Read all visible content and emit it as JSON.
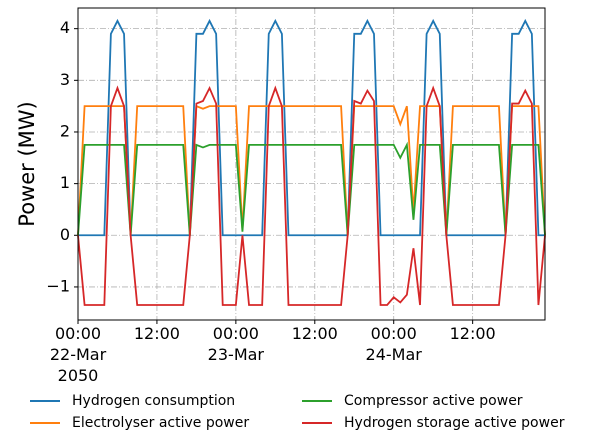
{
  "chart_data": {
    "type": "line",
    "ylabel": "Power (MW)",
    "x": [
      0,
      1,
      2,
      3,
      4,
      5,
      6,
      7,
      8,
      9,
      10,
      11,
      12,
      13,
      14,
      15,
      16,
      17,
      18,
      19,
      20,
      21,
      22,
      23,
      24,
      25,
      26,
      27,
      28,
      29,
      30,
      31,
      32,
      33,
      34,
      35,
      36,
      37,
      38,
      39,
      40,
      41,
      42,
      43,
      44,
      45,
      46,
      47,
      48,
      49,
      50,
      51,
      52,
      53,
      54,
      55,
      56,
      57,
      58,
      59,
      60,
      61,
      62,
      63,
      64,
      65,
      66,
      67,
      68,
      69,
      70,
      71
    ],
    "xlim": [
      0,
      71
    ],
    "xticks": [
      {
        "value": 0,
        "label": "00:00\n22-Mar\n2050"
      },
      {
        "value": 12,
        "label": "12:00"
      },
      {
        "value": 24,
        "label": "00:00\n23-Mar"
      },
      {
        "value": 36,
        "label": "12:00"
      },
      {
        "value": 48,
        "label": "00:00\n24-Mar"
      },
      {
        "value": 60,
        "label": "12:00"
      }
    ],
    "ylim": [
      -1.64,
      4.4
    ],
    "yticks": [
      {
        "value": -1,
        "label": "−1"
      },
      0,
      1,
      2,
      3,
      4
    ],
    "grid": true,
    "legend": "bottom",
    "series": [
      {
        "name": "Hydrogen consumption",
        "color": "#1f77b4",
        "values": [
          0,
          0,
          0,
          0,
          0,
          3.9,
          4.15,
          3.9,
          0,
          0,
          0,
          0,
          0,
          0,
          0,
          0,
          0,
          0,
          3.9,
          3.9,
          4.15,
          3.9,
          0,
          0,
          0,
          0,
          0,
          0,
          0,
          3.9,
          4.15,
          3.9,
          0,
          0,
          0,
          0,
          0,
          0,
          0,
          0,
          0,
          0,
          3.9,
          3.9,
          4.15,
          3.9,
          0,
          0,
          0,
          0,
          0,
          0,
          0,
          3.9,
          4.15,
          3.9,
          0,
          0,
          0,
          0,
          0,
          0,
          0,
          0,
          0,
          0,
          3.9,
          3.9,
          4.15,
          3.9,
          0,
          0
        ]
      },
      {
        "name": "Electrolyser active power",
        "color": "#ff7f0e",
        "values": [
          0,
          2.5,
          2.5,
          2.5,
          2.5,
          2.5,
          2.5,
          2.5,
          0,
          2.5,
          2.5,
          2.5,
          2.5,
          2.5,
          2.5,
          2.5,
          2.5,
          0,
          2.5,
          2.45,
          2.5,
          2.5,
          2.5,
          2.5,
          2.5,
          0.1,
          2.5,
          2.5,
          2.5,
          2.5,
          2.5,
          2.5,
          2.5,
          2.5,
          2.5,
          2.5,
          2.5,
          2.5,
          2.5,
          2.5,
          2.5,
          0,
          2.5,
          2.5,
          2.5,
          2.5,
          2.5,
          2.5,
          2.5,
          2.15,
          2.5,
          0.45,
          2.5,
          2.5,
          2.5,
          2.5,
          0,
          2.5,
          2.5,
          2.5,
          2.5,
          2.5,
          2.5,
          2.5,
          2.5,
          0,
          2.5,
          2.5,
          2.5,
          2.5,
          2.5,
          0
        ]
      },
      {
        "name": "Compressor active power",
        "color": "#2ca02c",
        "values": [
          0,
          1.75,
          1.75,
          1.75,
          1.75,
          1.75,
          1.75,
          1.75,
          0,
          1.75,
          1.75,
          1.75,
          1.75,
          1.75,
          1.75,
          1.75,
          1.75,
          0,
          1.75,
          1.7,
          1.75,
          1.75,
          1.75,
          1.75,
          1.75,
          0.07,
          1.75,
          1.75,
          1.75,
          1.75,
          1.75,
          1.75,
          1.75,
          1.75,
          1.75,
          1.75,
          1.75,
          1.75,
          1.75,
          1.75,
          1.75,
          0,
          1.75,
          1.75,
          1.75,
          1.75,
          1.75,
          1.75,
          1.75,
          1.5,
          1.75,
          0.3,
          1.75,
          1.75,
          1.75,
          1.75,
          0,
          1.75,
          1.75,
          1.75,
          1.75,
          1.75,
          1.75,
          1.75,
          1.75,
          0,
          1.75,
          1.75,
          1.75,
          1.75,
          1.75,
          0
        ]
      },
      {
        "name": "Hydrogen storage active power",
        "color": "#d62728",
        "values": [
          0,
          -1.35,
          -1.35,
          -1.35,
          -1.35,
          2.5,
          2.85,
          2.5,
          0,
          -1.35,
          -1.35,
          -1.35,
          -1.35,
          -1.35,
          -1.35,
          -1.35,
          -1.35,
          0,
          2.55,
          2.6,
          2.85,
          2.55,
          -1.35,
          -1.35,
          -1.35,
          0,
          -1.35,
          -1.35,
          -1.35,
          2.5,
          2.85,
          2.5,
          -1.35,
          -1.35,
          -1.35,
          -1.35,
          -1.35,
          -1.35,
          -1.35,
          -1.35,
          -1.35,
          0,
          2.6,
          2.55,
          2.8,
          2.6,
          -1.35,
          -1.35,
          -1.2,
          -1.3,
          -1.15,
          -0.25,
          -1.35,
          2.5,
          2.85,
          2.5,
          0,
          -1.35,
          -1.35,
          -1.35,
          -1.35,
          -1.35,
          -1.35,
          -1.35,
          -1.35,
          0,
          2.55,
          2.55,
          2.8,
          2.55,
          -1.35,
          0
        ]
      }
    ]
  }
}
